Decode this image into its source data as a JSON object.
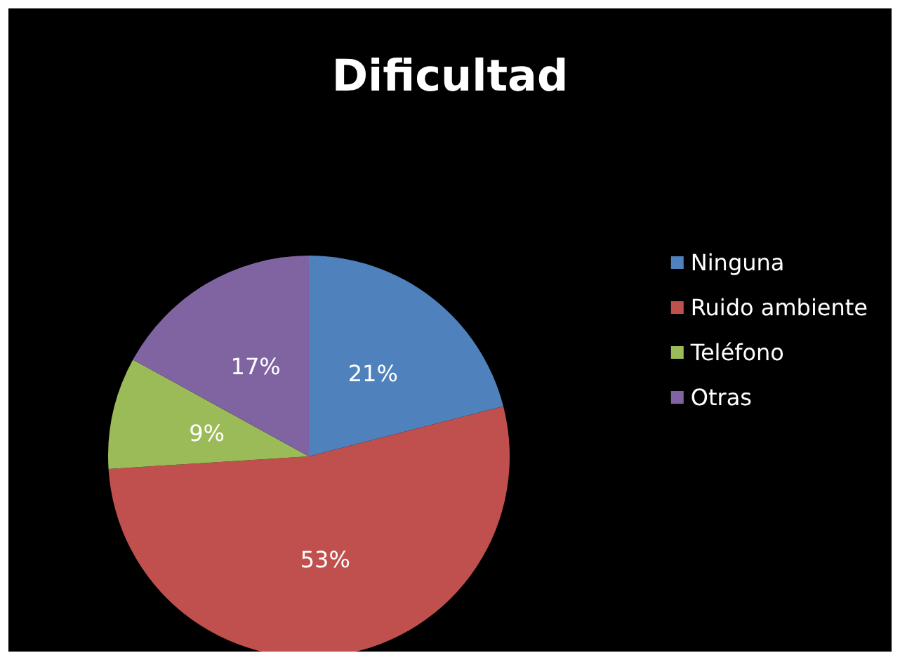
{
  "chart_data": {
    "type": "pie",
    "title": "Dificultad",
    "categories": [
      "Ninguna",
      "Ruido ambiente",
      "Teléfono",
      "Otras"
    ],
    "values": [
      21,
      53,
      9,
      17
    ],
    "colors": [
      "#4f81bd",
      "#c0504d",
      "#9bbb59",
      "#8064a2"
    ],
    "value_labels": [
      "21%",
      "53%",
      "9%",
      "17%"
    ],
    "legend": "right"
  }
}
